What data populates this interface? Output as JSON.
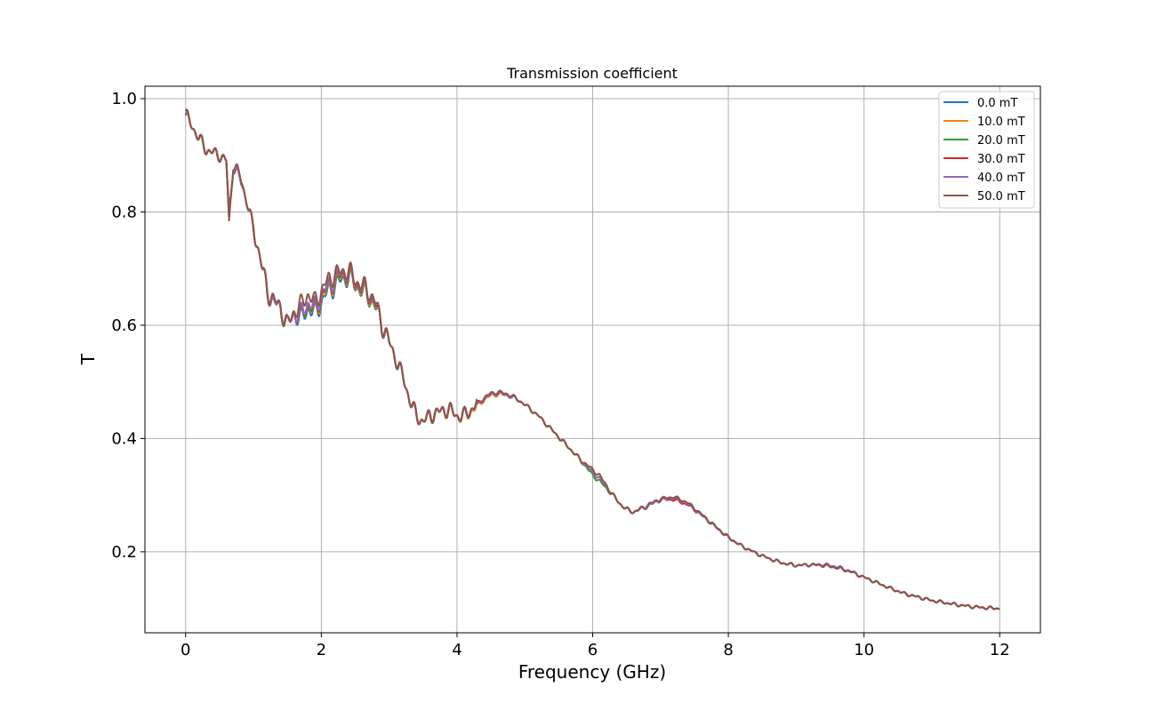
{
  "chart_data": {
    "type": "line",
    "title": "Transmission coefficient",
    "xlabel": "Frequency (GHz)",
    "ylabel": "T",
    "xlim": [
      -0.6,
      12.6
    ],
    "ylim": [
      0.057,
      1.022
    ],
    "xticks": [
      0,
      2,
      4,
      6,
      8,
      10,
      12
    ],
    "xtick_labels": [
      "0",
      "2",
      "4",
      "6",
      "8",
      "10",
      "12"
    ],
    "yticks": [
      0.2,
      0.4,
      0.6,
      0.8,
      1.0
    ],
    "ytick_labels": [
      "0.2",
      "0.4",
      "0.6",
      "0.8",
      "1.0"
    ],
    "grid": true,
    "legend_position": "top-right",
    "x": [
      0.0,
      0.1,
      0.2,
      0.3,
      0.4,
      0.5,
      0.6,
      0.64,
      0.7,
      0.8,
      0.9,
      1.0,
      1.1,
      1.2,
      1.3,
      1.4,
      1.5,
      1.6,
      1.7,
      1.8,
      1.9,
      2.0,
      2.1,
      2.2,
      2.3,
      2.4,
      2.5,
      2.6,
      2.7,
      2.8,
      2.9,
      3.0,
      3.1,
      3.2,
      3.3,
      3.4,
      3.5,
      3.6,
      3.7,
      3.8,
      3.9,
      4.0,
      4.1,
      4.2,
      4.3,
      4.4,
      4.5,
      4.6,
      4.7,
      4.8,
      4.9,
      5.0,
      5.2,
      5.4,
      5.6,
      5.8,
      6.0,
      6.1,
      6.2,
      6.3,
      6.4,
      6.5,
      6.6,
      6.8,
      7.0,
      7.2,
      7.4,
      7.6,
      7.8,
      8.0,
      8.2,
      8.4,
      8.6,
      8.8,
      9.0,
      9.2,
      9.4,
      9.6,
      9.8,
      10.0,
      10.2,
      10.4,
      10.6,
      10.8,
      11.0,
      11.2,
      11.4,
      11.6,
      11.8,
      12.0
    ],
    "series": [
      {
        "name": "0.0 mT",
        "color": "#1f77b4",
        "values": [
          0.97,
          0.95,
          0.93,
          0.91,
          0.905,
          0.9,
          0.89,
          0.79,
          0.88,
          0.86,
          0.82,
          0.77,
          0.72,
          0.66,
          0.64,
          0.63,
          0.6,
          0.62,
          0.61,
          0.63,
          0.62,
          0.64,
          0.66,
          0.67,
          0.68,
          0.685,
          0.67,
          0.66,
          0.65,
          0.63,
          0.6,
          0.57,
          0.54,
          0.51,
          0.47,
          0.44,
          0.43,
          0.44,
          0.445,
          0.45,
          0.45,
          0.44,
          0.44,
          0.45,
          0.46,
          0.47,
          0.478,
          0.48,
          0.478,
          0.474,
          0.468,
          0.46,
          0.44,
          0.415,
          0.39,
          0.365,
          0.34,
          0.33,
          0.315,
          0.3,
          0.285,
          0.275,
          0.27,
          0.28,
          0.292,
          0.295,
          0.285,
          0.265,
          0.245,
          0.225,
          0.21,
          0.198,
          0.188,
          0.18,
          0.176,
          0.177,
          0.176,
          0.172,
          0.165,
          0.155,
          0.145,
          0.135,
          0.126,
          0.12,
          0.114,
          0.11,
          0.106,
          0.103,
          0.101,
          0.1
        ]
      },
      {
        "name": "10.0 mT",
        "color": "#ff7f0e",
        "values": [
          0.97,
          0.95,
          0.93,
          0.91,
          0.905,
          0.9,
          0.89,
          0.79,
          0.88,
          0.86,
          0.82,
          0.77,
          0.72,
          0.66,
          0.64,
          0.63,
          0.6,
          0.62,
          0.615,
          0.635,
          0.625,
          0.645,
          0.665,
          0.675,
          0.685,
          0.688,
          0.672,
          0.662,
          0.652,
          0.632,
          0.6,
          0.57,
          0.54,
          0.51,
          0.47,
          0.44,
          0.43,
          0.44,
          0.445,
          0.45,
          0.45,
          0.44,
          0.44,
          0.447,
          0.458,
          0.468,
          0.476,
          0.478,
          0.477,
          0.474,
          0.468,
          0.46,
          0.44,
          0.415,
          0.39,
          0.365,
          0.34,
          0.33,
          0.315,
          0.3,
          0.285,
          0.275,
          0.27,
          0.28,
          0.292,
          0.295,
          0.285,
          0.265,
          0.245,
          0.225,
          0.21,
          0.198,
          0.188,
          0.18,
          0.176,
          0.177,
          0.176,
          0.172,
          0.165,
          0.155,
          0.145,
          0.135,
          0.126,
          0.12,
          0.114,
          0.11,
          0.106,
          0.103,
          0.101,
          0.1
        ]
      },
      {
        "name": "20.0 mT",
        "color": "#2ca02c",
        "values": [
          0.97,
          0.95,
          0.93,
          0.91,
          0.905,
          0.9,
          0.89,
          0.79,
          0.88,
          0.86,
          0.82,
          0.77,
          0.72,
          0.66,
          0.64,
          0.63,
          0.6,
          0.62,
          0.615,
          0.635,
          0.628,
          0.648,
          0.668,
          0.678,
          0.688,
          0.69,
          0.674,
          0.664,
          0.654,
          0.634,
          0.6,
          0.57,
          0.54,
          0.51,
          0.47,
          0.44,
          0.43,
          0.44,
          0.445,
          0.45,
          0.45,
          0.44,
          0.44,
          0.45,
          0.46,
          0.47,
          0.478,
          0.48,
          0.478,
          0.474,
          0.468,
          0.46,
          0.44,
          0.415,
          0.39,
          0.365,
          0.335,
          0.325,
          0.312,
          0.3,
          0.285,
          0.275,
          0.27,
          0.28,
          0.292,
          0.295,
          0.285,
          0.265,
          0.245,
          0.225,
          0.21,
          0.198,
          0.188,
          0.18,
          0.176,
          0.177,
          0.176,
          0.172,
          0.165,
          0.155,
          0.145,
          0.135,
          0.126,
          0.12,
          0.114,
          0.11,
          0.106,
          0.103,
          0.101,
          0.1
        ]
      },
      {
        "name": "30.0 mT",
        "color": "#d62728",
        "values": [
          0.97,
          0.95,
          0.93,
          0.91,
          0.905,
          0.9,
          0.89,
          0.79,
          0.88,
          0.86,
          0.82,
          0.77,
          0.72,
          0.66,
          0.64,
          0.63,
          0.6,
          0.62,
          0.618,
          0.638,
          0.63,
          0.65,
          0.67,
          0.68,
          0.69,
          0.692,
          0.676,
          0.666,
          0.656,
          0.636,
          0.6,
          0.57,
          0.54,
          0.51,
          0.47,
          0.44,
          0.43,
          0.44,
          0.445,
          0.45,
          0.45,
          0.44,
          0.44,
          0.45,
          0.46,
          0.47,
          0.478,
          0.48,
          0.478,
          0.474,
          0.468,
          0.46,
          0.44,
          0.415,
          0.39,
          0.365,
          0.34,
          0.33,
          0.315,
          0.3,
          0.285,
          0.275,
          0.27,
          0.28,
          0.292,
          0.292,
          0.283,
          0.265,
          0.245,
          0.225,
          0.21,
          0.198,
          0.188,
          0.18,
          0.176,
          0.177,
          0.176,
          0.172,
          0.165,
          0.155,
          0.145,
          0.135,
          0.126,
          0.12,
          0.114,
          0.11,
          0.106,
          0.103,
          0.101,
          0.1
        ]
      },
      {
        "name": "40.0 mT",
        "color": "#9467bd",
        "values": [
          0.97,
          0.95,
          0.93,
          0.91,
          0.905,
          0.9,
          0.89,
          0.79,
          0.88,
          0.86,
          0.82,
          0.77,
          0.72,
          0.66,
          0.64,
          0.63,
          0.6,
          0.62,
          0.62,
          0.64,
          0.632,
          0.652,
          0.672,
          0.682,
          0.692,
          0.694,
          0.678,
          0.668,
          0.658,
          0.638,
          0.6,
          0.57,
          0.54,
          0.51,
          0.47,
          0.44,
          0.43,
          0.44,
          0.445,
          0.45,
          0.45,
          0.44,
          0.44,
          0.45,
          0.46,
          0.47,
          0.478,
          0.48,
          0.478,
          0.474,
          0.468,
          0.46,
          0.44,
          0.415,
          0.39,
          0.365,
          0.34,
          0.33,
          0.315,
          0.3,
          0.285,
          0.275,
          0.27,
          0.28,
          0.292,
          0.295,
          0.285,
          0.265,
          0.245,
          0.225,
          0.21,
          0.198,
          0.188,
          0.18,
          0.176,
          0.177,
          0.178,
          0.174,
          0.166,
          0.155,
          0.145,
          0.135,
          0.126,
          0.12,
          0.114,
          0.11,
          0.106,
          0.103,
          0.101,
          0.1
        ]
      },
      {
        "name": "50.0 mT",
        "color": "#8c564b",
        "values": [
          0.975,
          0.95,
          0.93,
          0.91,
          0.905,
          0.9,
          0.89,
          0.78,
          0.885,
          0.865,
          0.82,
          0.77,
          0.72,
          0.66,
          0.645,
          0.63,
          0.6,
          0.625,
          0.635,
          0.655,
          0.64,
          0.66,
          0.68,
          0.69,
          0.695,
          0.697,
          0.68,
          0.67,
          0.66,
          0.64,
          0.6,
          0.57,
          0.54,
          0.51,
          0.47,
          0.44,
          0.43,
          0.44,
          0.445,
          0.45,
          0.45,
          0.44,
          0.44,
          0.45,
          0.462,
          0.472,
          0.48,
          0.482,
          0.48,
          0.476,
          0.469,
          0.46,
          0.44,
          0.415,
          0.39,
          0.365,
          0.345,
          0.335,
          0.318,
          0.3,
          0.285,
          0.275,
          0.27,
          0.282,
          0.294,
          0.297,
          0.287,
          0.267,
          0.246,
          0.226,
          0.21,
          0.198,
          0.188,
          0.18,
          0.176,
          0.177,
          0.176,
          0.172,
          0.165,
          0.155,
          0.145,
          0.135,
          0.126,
          0.12,
          0.114,
          0.11,
          0.106,
          0.103,
          0.101,
          0.1
        ]
      }
    ]
  }
}
